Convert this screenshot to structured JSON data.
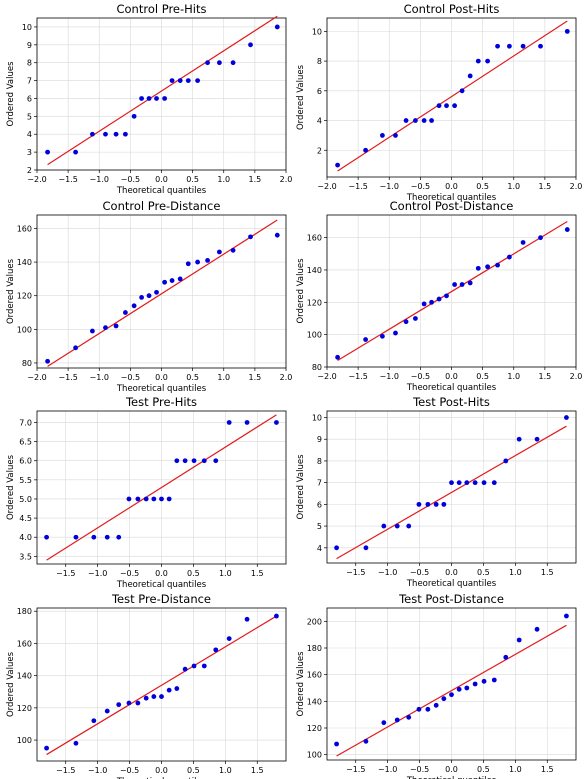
{
  "chart_data": [
    {
      "type": "scatter",
      "title": "Control Pre-Hits",
      "xlabel": "Theoretical quantiles",
      "ylabel": "Ordered Values",
      "xlim": [
        -2.0,
        2.0
      ],
      "ylim": [
        2,
        10.5
      ],
      "xticks": [
        -2.0,
        -1.5,
        -1.0,
        -0.5,
        0.0,
        0.5,
        1.0,
        1.5,
        2.0
      ],
      "xtick_labels": [
        "−2.0",
        "−1.5",
        "−1.0",
        "−0.5",
        "0.0",
        "0.5",
        "1.0",
        "1.5",
        "2.0"
      ],
      "yticks": [
        2,
        3,
        4,
        5,
        6,
        7,
        8,
        9,
        10
      ],
      "ytick_labels": [
        "2",
        "3",
        "4",
        "5",
        "6",
        "7",
        "8",
        "9",
        "10"
      ],
      "grid": true,
      "x": [
        -1.83,
        -1.38,
        -1.11,
        -0.9,
        -0.73,
        -0.58,
        -0.44,
        -0.32,
        -0.2,
        -0.08,
        0.05,
        0.17,
        0.3,
        0.43,
        0.58,
        0.74,
        0.93,
        1.15,
        1.43,
        1.86
      ],
      "y": [
        3,
        3,
        4,
        4,
        4,
        4,
        5,
        6,
        6,
        6,
        6,
        7,
        7,
        7,
        7,
        8,
        8,
        8,
        9,
        10
      ],
      "fit": {
        "x": [
          -1.83,
          1.86
        ],
        "y": [
          2.3,
          10.6
        ]
      }
    },
    {
      "type": "scatter",
      "title": "Control Post-Hits",
      "xlabel": "Theoretical quantiles",
      "ylabel": "Ordered Values",
      "xlim": [
        -2.0,
        2.0
      ],
      "ylim": [
        0.2,
        10.9
      ],
      "xticks": [
        -2.0,
        -1.5,
        -1.0,
        -0.5,
        0.0,
        0.5,
        1.0,
        1.5,
        2.0
      ],
      "xtick_labels": [
        "−2.0",
        "−1.5",
        "−1.0",
        "−0.5",
        "0.0",
        "0.5",
        "1.0",
        "1.5",
        "2.0"
      ],
      "yticks": [
        2,
        4,
        6,
        8,
        10
      ],
      "ytick_labels": [
        "2",
        "4",
        "6",
        "8",
        "10"
      ],
      "grid": true,
      "x": [
        -1.83,
        -1.38,
        -1.11,
        -0.9,
        -0.73,
        -0.58,
        -0.44,
        -0.32,
        -0.2,
        -0.08,
        0.05,
        0.17,
        0.3,
        0.43,
        0.58,
        0.74,
        0.93,
        1.15,
        1.43,
        1.86
      ],
      "y": [
        1,
        2,
        3,
        3,
        4,
        4,
        4,
        4,
        5,
        5,
        5,
        6,
        7,
        8,
        8,
        9,
        9,
        9,
        9,
        10
      ],
      "fit": {
        "x": [
          -1.83,
          1.86
        ],
        "y": [
          0.6,
          10.7
        ]
      }
    },
    {
      "type": "scatter",
      "title": "Control Pre-Distance",
      "xlabel": "Theoretical quantiles",
      "ylabel": "Ordered Values",
      "xlim": [
        -2.0,
        2.0
      ],
      "ylim": [
        77,
        168
      ],
      "xticks": [
        -2.0,
        -1.5,
        -1.0,
        -0.5,
        0.0,
        0.5,
        1.0,
        1.5,
        2.0
      ],
      "xtick_labels": [
        "−2.0",
        "−1.5",
        "−1.0",
        "−0.5",
        "0.0",
        "0.5",
        "1.0",
        "1.5",
        "2.0"
      ],
      "yticks": [
        80,
        100,
        120,
        140,
        160
      ],
      "ytick_labels": [
        "80",
        "100",
        "120",
        "140",
        "160"
      ],
      "grid": true,
      "x": [
        -1.83,
        -1.38,
        -1.11,
        -0.9,
        -0.73,
        -0.58,
        -0.44,
        -0.32,
        -0.2,
        -0.08,
        0.05,
        0.17,
        0.3,
        0.43,
        0.58,
        0.74,
        0.93,
        1.15,
        1.43,
        1.86
      ],
      "y": [
        81,
        89,
        99,
        101,
        102,
        110,
        114,
        119,
        120,
        122,
        128,
        129,
        130,
        139,
        140,
        141,
        146,
        147,
        155,
        156
      ],
      "fit": {
        "x": [
          -1.83,
          1.86
        ],
        "y": [
          78,
          165
        ]
      }
    },
    {
      "type": "scatter",
      "title": "Control Post-Distance",
      "xlabel": "Theoretical quantiles",
      "ylabel": "Ordered Values",
      "xlim": [
        -2.0,
        2.0
      ],
      "ylim": [
        80,
        174
      ],
      "xticks": [
        -2.0,
        -1.5,
        -1.0,
        -0.5,
        0.0,
        0.5,
        1.0,
        1.5,
        2.0
      ],
      "xtick_labels": [
        "−2.0",
        "−1.5",
        "−1.0",
        "−0.5",
        "0.0",
        "0.5",
        "1.0",
        "1.5",
        "2.0"
      ],
      "yticks": [
        80,
        100,
        120,
        140,
        160
      ],
      "ytick_labels": [
        "80",
        "100",
        "120",
        "140",
        "160"
      ],
      "grid": true,
      "x": [
        -1.83,
        -1.38,
        -1.11,
        -0.9,
        -0.73,
        -0.58,
        -0.44,
        -0.32,
        -0.2,
        -0.08,
        0.05,
        0.17,
        0.3,
        0.43,
        0.58,
        0.74,
        0.93,
        1.15,
        1.43,
        1.86
      ],
      "y": [
        86,
        97,
        99,
        101,
        108,
        110,
        119,
        120,
        122,
        124,
        131,
        131,
        132,
        141,
        142,
        143,
        148,
        157,
        160,
        165
      ],
      "fit": {
        "x": [
          -1.83,
          1.86
        ],
        "y": [
          84,
          170
        ]
      }
    },
    {
      "type": "scatter",
      "title": "Test Pre-Hits",
      "xlabel": "Theoretical quantiles",
      "ylabel": "Ordered Values",
      "xlim": [
        -1.95,
        1.95
      ],
      "ylim": [
        3.3,
        7.3
      ],
      "xticks": [
        -1.5,
        -1.0,
        -0.5,
        0.0,
        0.5,
        1.0,
        1.5
      ],
      "xtick_labels": [
        "−1.5",
        "−1.0",
        "−0.5",
        "0.0",
        "0.5",
        "1.0",
        "1.5"
      ],
      "yticks": [
        3.5,
        4.0,
        4.5,
        5.0,
        5.5,
        6.0,
        6.5,
        7.0
      ],
      "ytick_labels": [
        "3.5",
        "4.0",
        "4.5",
        "5.0",
        "5.5",
        "6.0",
        "6.5",
        "7.0"
      ],
      "grid": true,
      "x": [
        -1.8,
        -1.34,
        -1.06,
        -0.85,
        -0.67,
        -0.51,
        -0.37,
        -0.24,
        -0.12,
        0.0,
        0.12,
        0.24,
        0.37,
        0.51,
        0.67,
        0.85,
        1.06,
        1.34,
        1.8
      ],
      "y": [
        4,
        4,
        4,
        4,
        4,
        5,
        5,
        5,
        5,
        5,
        5,
        6,
        6,
        6,
        6,
        6,
        7,
        7,
        7
      ],
      "fit": {
        "x": [
          -1.8,
          1.8
        ],
        "y": [
          3.4,
          7.2
        ]
      }
    },
    {
      "type": "scatter",
      "title": "Test Post-Hits",
      "xlabel": "Theoretical quantiles",
      "ylabel": "Ordered Values",
      "xlim": [
        -1.95,
        1.95
      ],
      "ylim": [
        3.3,
        10.3
      ],
      "xticks": [
        -1.5,
        -1.0,
        -0.5,
        0.0,
        0.5,
        1.0,
        1.5
      ],
      "xtick_labels": [
        "−1.5",
        "−1.0",
        "−0.5",
        "0.0",
        "0.5",
        "1.0",
        "1.5"
      ],
      "yticks": [
        4,
        5,
        6,
        7,
        8,
        9,
        10
      ],
      "ytick_labels": [
        "4",
        "5",
        "6",
        "7",
        "8",
        "9",
        "10"
      ],
      "grid": true,
      "x": [
        -1.8,
        -1.34,
        -1.06,
        -0.85,
        -0.67,
        -0.51,
        -0.37,
        -0.24,
        -0.12,
        0.0,
        0.12,
        0.24,
        0.37,
        0.51,
        0.67,
        0.85,
        1.06,
        1.34,
        1.8
      ],
      "y": [
        4,
        4,
        5,
        5,
        5,
        6,
        6,
        6,
        6,
        7,
        7,
        7,
        7,
        7,
        7,
        8,
        9,
        9,
        10
      ],
      "fit": {
        "x": [
          -1.8,
          1.8
        ],
        "y": [
          3.5,
          9.6
        ]
      }
    },
    {
      "type": "scatter",
      "title": "Test Pre-Distance",
      "xlabel": "Theoretical quantiles",
      "ylabel": "Ordered Values",
      "xlim": [
        -1.95,
        1.95
      ],
      "ylim": [
        87,
        182
      ],
      "xticks": [
        -1.5,
        -1.0,
        -0.5,
        0.0,
        0.5,
        1.0,
        1.5
      ],
      "xtick_labels": [
        "−1.5",
        "−1.0",
        "−0.5",
        "0.0",
        "0.5",
        "1.0",
        "1.5"
      ],
      "yticks": [
        100,
        120,
        140,
        160,
        180
      ],
      "ytick_labels": [
        "100",
        "120",
        "140",
        "160",
        "180"
      ],
      "grid": true,
      "x": [
        -1.8,
        -1.34,
        -1.06,
        -0.85,
        -0.67,
        -0.51,
        -0.37,
        -0.24,
        -0.12,
        0.0,
        0.12,
        0.24,
        0.37,
        0.51,
        0.67,
        0.85,
        1.06,
        1.34,
        1.8
      ],
      "y": [
        95,
        98,
        112,
        118,
        122,
        123,
        123,
        126,
        127,
        127,
        131,
        132,
        144,
        146,
        146,
        156,
        163,
        175,
        177
      ],
      "fit": {
        "x": [
          -1.8,
          1.8
        ],
        "y": [
          91,
          177
        ]
      }
    },
    {
      "type": "scatter",
      "title": "Test Post-Distance",
      "xlabel": "Theoretical quantiles",
      "ylabel": "Ordered Values",
      "xlim": [
        -1.95,
        1.95
      ],
      "ylim": [
        96,
        210
      ],
      "xticks": [
        -1.5,
        -1.0,
        -0.5,
        0.0,
        0.5,
        1.0,
        1.5
      ],
      "xtick_labels": [
        "−1.5",
        "−1.0",
        "−0.5",
        "0.0",
        "0.5",
        "1.0",
        "1.5"
      ],
      "yticks": [
        100,
        120,
        140,
        160,
        180,
        200
      ],
      "ytick_labels": [
        "100",
        "120",
        "140",
        "160",
        "180",
        "200"
      ],
      "grid": true,
      "x": [
        -1.8,
        -1.34,
        -1.06,
        -0.85,
        -0.67,
        -0.51,
        -0.37,
        -0.24,
        -0.12,
        0.0,
        0.12,
        0.24,
        0.37,
        0.51,
        0.67,
        0.85,
        1.06,
        1.34,
        1.8
      ],
      "y": [
        108,
        110,
        124,
        126,
        128,
        134,
        134,
        137,
        142,
        145,
        149,
        150,
        153,
        155,
        156,
        173,
        186,
        194,
        204
      ],
      "fit": {
        "x": [
          -1.8,
          1.8
        ],
        "y": [
          99,
          197
        ]
      }
    }
  ],
  "colors": {
    "points": "#0000dd",
    "fit_line": "#e31a1c",
    "grid": "#d9d9d9"
  }
}
